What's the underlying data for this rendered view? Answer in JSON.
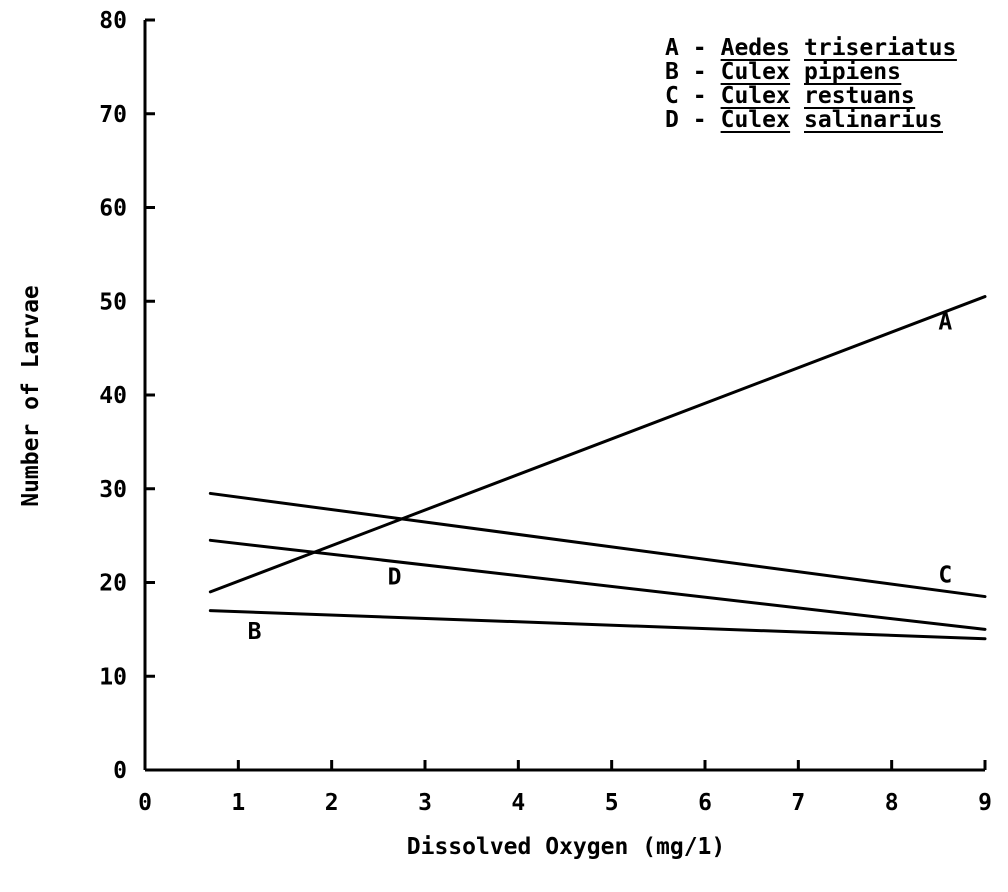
{
  "chart_data": {
    "type": "line",
    "xlabel": "Dissolved Oxygen (mg/1)",
    "ylabel": "Number of Larvae",
    "xlim": [
      0,
      9
    ],
    "ylim": [
      0,
      80
    ],
    "x_ticks": [
      "0",
      "1",
      "2",
      "3",
      "4",
      "5",
      "6",
      "7",
      "8",
      "9"
    ],
    "y_ticks": [
      "0",
      "10",
      "20",
      "30",
      "40",
      "50",
      "60",
      "70",
      "80"
    ],
    "grid": false,
    "legend_position": "top-right",
    "series": [
      {
        "name": "A",
        "legend": {
          "letter": "A",
          "sep": "-",
          "genus": "Aedes",
          "species": "triseriatus"
        },
        "x": [
          0.7,
          9.0
        ],
        "y": [
          19,
          50.5
        ],
        "label": "A",
        "label_at": [
          8.5,
          47
        ]
      },
      {
        "name": "B",
        "legend": {
          "letter": "B",
          "sep": "-",
          "genus": "Culex",
          "species": "pipiens"
        },
        "x": [
          0.7,
          9.0
        ],
        "y": [
          17,
          14
        ],
        "label": "B",
        "label_at": [
          1.1,
          14
        ]
      },
      {
        "name": "C",
        "legend": {
          "letter": "C",
          "sep": "-",
          "genus": "Culex",
          "species": "restuans"
        },
        "x": [
          0.7,
          9.0
        ],
        "y": [
          29.5,
          18.5
        ],
        "label": "C",
        "label_at": [
          8.5,
          20
        ]
      },
      {
        "name": "D",
        "legend": {
          "letter": "D",
          "sep": "-",
          "genus": "Culex",
          "species": "salinarius"
        },
        "x": [
          0.7,
          9.0
        ],
        "y": [
          24.5,
          15
        ],
        "label": "D",
        "label_at": [
          2.6,
          19.8
        ]
      }
    ]
  }
}
